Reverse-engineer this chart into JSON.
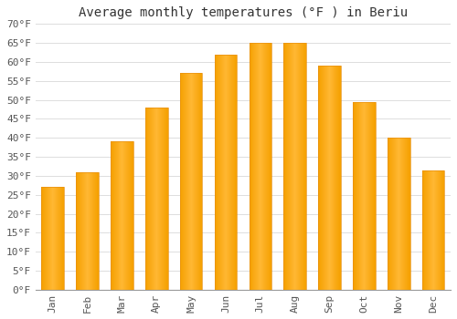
{
  "title": "Average monthly temperatures (°F ) in Beriu",
  "months": [
    "Jan",
    "Feb",
    "Mar",
    "Apr",
    "May",
    "Jun",
    "Jul",
    "Aug",
    "Sep",
    "Oct",
    "Nov",
    "Dec"
  ],
  "values": [
    27,
    31,
    39,
    48,
    57,
    62,
    65,
    65,
    59,
    49.5,
    40,
    31.5
  ],
  "bar_color_light": "#FFB733",
  "bar_color_dark": "#F5A000",
  "bar_edge_color": "#E89010",
  "ylim": [
    0,
    70
  ],
  "yticks": [
    0,
    5,
    10,
    15,
    20,
    25,
    30,
    35,
    40,
    45,
    50,
    55,
    60,
    65,
    70
  ],
  "ytick_labels": [
    "0°F",
    "5°F",
    "10°F",
    "15°F",
    "20°F",
    "25°F",
    "30°F",
    "35°F",
    "40°F",
    "45°F",
    "50°F",
    "55°F",
    "60°F",
    "65°F",
    "70°F"
  ],
  "background_color": "#ffffff",
  "grid_color": "#dddddd",
  "title_fontsize": 10,
  "tick_fontsize": 8,
  "font_family": "monospace"
}
